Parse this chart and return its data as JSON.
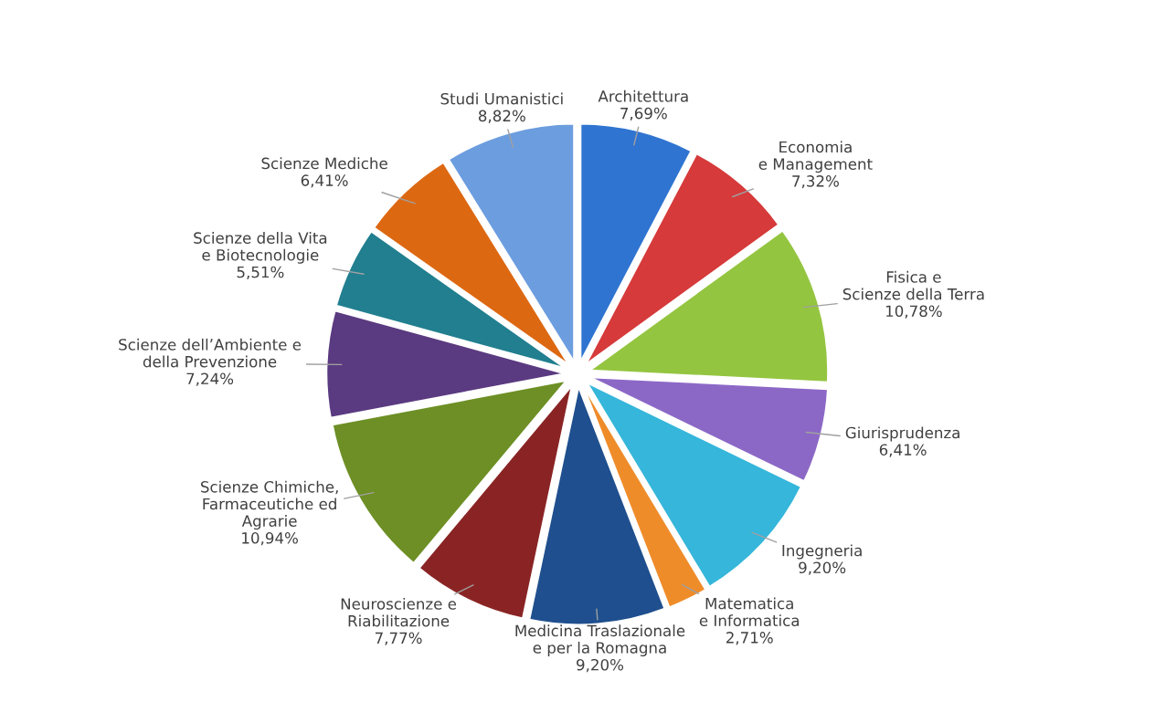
{
  "chart_data": {
    "type": "pie",
    "categories": [
      "Architettura",
      "Economia\ne Management",
      "Fisica e\nScienze della Terra",
      "Giurisprudenza",
      "Ingegneria",
      "Matematica\ne Informatica",
      "Medicina Traslazionale\ne per la Romagna",
      "Neuroscienze e\nRiabilitazione",
      "Scienze Chimiche,\nFarmaceutiche ed\nAgrarie",
      "Scienze dell’Ambiente e\ndella Prevenzione",
      "Scienze della Vita\ne Biotecnologie",
      "Scienze Mediche",
      "Studi Umanistici"
    ],
    "values": [
      7.69,
      7.32,
      10.78,
      6.41,
      9.2,
      2.71,
      9.2,
      7.77,
      10.94,
      7.24,
      5.51,
      6.41,
      8.82
    ],
    "value_labels": [
      "7,69%",
      "7,32%",
      "10,78%",
      "6,41%",
      "9,20%",
      "2,71%",
      "9,20%",
      "7,77%",
      "10,94%",
      "7,24%",
      "5,51%",
      "6,41%",
      "8,82%"
    ],
    "colors": [
      "#2f74d0",
      "#d63a3a",
      "#94c540",
      "#8c68c6",
      "#35b6da",
      "#ef8c2a",
      "#1f4f8e",
      "#8a2424",
      "#6d8f25",
      "#5a3a80",
      "#217f8f",
      "#dd6812",
      "#6c9ddf"
    ]
  }
}
